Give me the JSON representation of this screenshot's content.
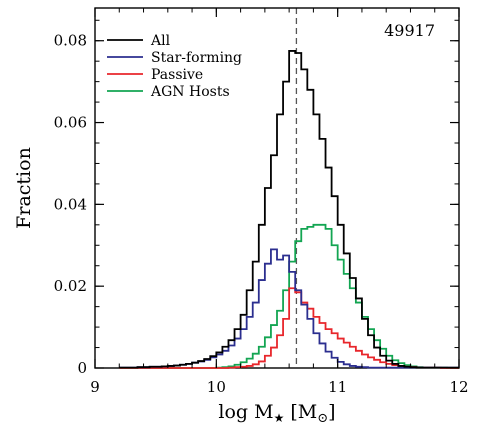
{
  "chart_data": {
    "type": "line",
    "step": true,
    "xlabel": "log M",
    "xlabel_subscript": "★",
    "xlabel_unit_open": " [M",
    "xlabel_unit_subscript": "⊙",
    "xlabel_unit_close": "]",
    "ylabel": "Fraction",
    "annotation": "49917",
    "xlim": [
      9,
      12
    ],
    "ylim": [
      0,
      0.088
    ],
    "x_ticks": [
      9,
      10,
      11,
      12
    ],
    "x_tick_labels": [
      "9",
      "10",
      "11",
      "12"
    ],
    "y_ticks": [
      0,
      0.02,
      0.04,
      0.06,
      0.08
    ],
    "y_tick_labels": [
      "0",
      "0.02",
      "0.04",
      "0.06",
      "0.08"
    ],
    "vline_x": 10.66,
    "legend_position": "top-left",
    "bin_width": 0.05,
    "bin_start": 9.2,
    "series": [
      {
        "name": "All",
        "color": "#000000",
        "values": [
          0.0001,
          0.0001,
          0.0001,
          0.0002,
          0.0002,
          0.0003,
          0.0003,
          0.0004,
          0.0005,
          0.0006,
          0.0008,
          0.001,
          0.0013,
          0.0017,
          0.0022,
          0.0029,
          0.0038,
          0.0052,
          0.0068,
          0.0095,
          0.013,
          0.019,
          0.026,
          0.035,
          0.044,
          0.052,
          0.062,
          0.07,
          0.0775,
          0.077,
          0.073,
          0.068,
          0.062,
          0.056,
          0.049,
          0.042,
          0.035,
          0.028,
          0.022,
          0.017,
          0.012,
          0.008,
          0.005,
          0.003,
          0.0018,
          0.001,
          0.0005,
          0.0003,
          0.0002,
          0.0001,
          0.0001,
          0.0001,
          0.0001,
          0.0001,
          0.0001,
          0.0001
        ]
      },
      {
        "name": "Star-forming",
        "color": "#2b2e8f",
        "values": [
          0.0001,
          0.0001,
          0.0001,
          0.0002,
          0.0002,
          0.0003,
          0.0003,
          0.0004,
          0.0005,
          0.0006,
          0.0008,
          0.001,
          0.0013,
          0.0016,
          0.002,
          0.0026,
          0.0033,
          0.0042,
          0.0055,
          0.0072,
          0.0095,
          0.0125,
          0.016,
          0.0215,
          0.0255,
          0.029,
          0.0265,
          0.0275,
          0.0235,
          0.019,
          0.0155,
          0.012,
          0.0085,
          0.006,
          0.004,
          0.0025,
          0.0015,
          0.0009,
          0.0005,
          0.0003,
          0.0002,
          0.0001,
          0.0001,
          0.0001,
          0.0001,
          0.0001,
          0.0001,
          0.0001,
          0.0001,
          0.0001,
          0.0001,
          0.0001,
          0.0001,
          0.0001,
          0.0001,
          0.0001
        ]
      },
      {
        "name": "Passive",
        "color": "#e8262b",
        "values": [
          0,
          0,
          0,
          0,
          0,
          0,
          0,
          0,
          0,
          0,
          0,
          0,
          0,
          0,
          0,
          0,
          0,
          0,
          0.0001,
          0.0002,
          0.0003,
          0.0005,
          0.0009,
          0.0016,
          0.003,
          0.005,
          0.008,
          0.012,
          0.0195,
          0.0185,
          0.016,
          0.0145,
          0.0125,
          0.011,
          0.0095,
          0.0085,
          0.0072,
          0.0062,
          0.0052,
          0.0042,
          0.0033,
          0.0026,
          0.002,
          0.0014,
          0.001,
          0.0007,
          0.0005,
          0.0003,
          0.0002,
          0.0001,
          0.0001,
          0.0001,
          0.0001,
          0,
          0,
          0
        ]
      },
      {
        "name": "AGN Hosts",
        "color": "#13a552",
        "values": [
          0,
          0,
          0,
          0,
          0,
          0,
          0,
          0,
          0,
          0,
          0,
          0,
          0,
          0,
          0,
          0,
          0.0001,
          0.0002,
          0.0004,
          0.0008,
          0.0014,
          0.0023,
          0.0035,
          0.0052,
          0.0075,
          0.0105,
          0.014,
          0.019,
          0.026,
          0.031,
          0.034,
          0.0345,
          0.035,
          0.035,
          0.034,
          0.03,
          0.0265,
          0.023,
          0.0195,
          0.016,
          0.0125,
          0.0095,
          0.0068,
          0.0047,
          0.003,
          0.0019,
          0.0012,
          0.0007,
          0.0004,
          0.0002,
          0.0001,
          0.0001,
          0.0001,
          0.0001,
          0,
          0
        ]
      }
    ]
  }
}
